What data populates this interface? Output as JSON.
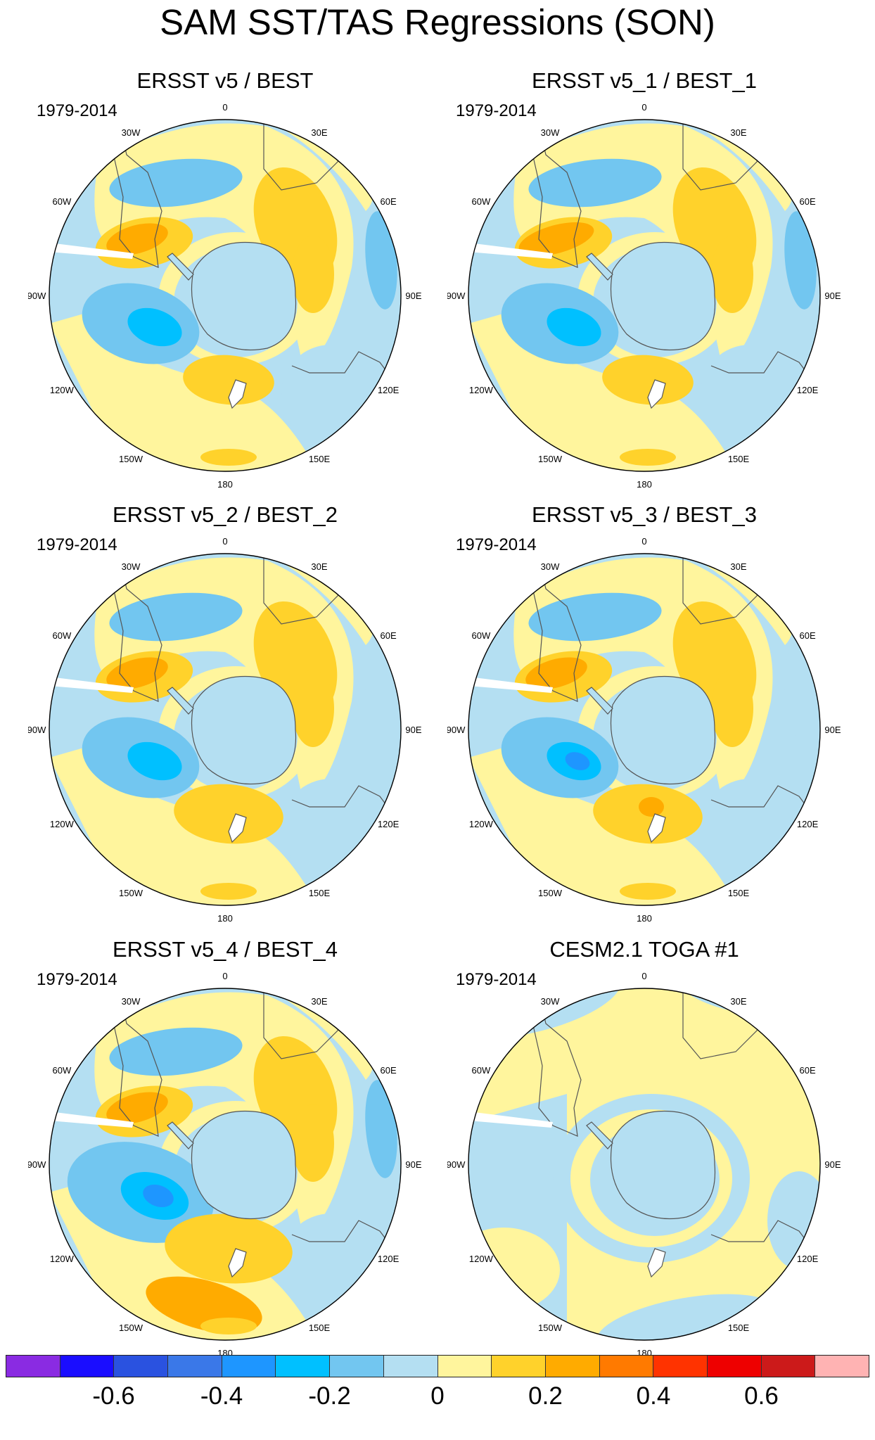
{
  "title": "SAM SST/TAS Regressions (SON)",
  "panels": [
    {
      "title": "ERSST v5 / BEST",
      "period": "1979-2014",
      "variant": 0
    },
    {
      "title": "ERSST v5_1 / BEST_1",
      "period": "1979-2014",
      "variant": 1
    },
    {
      "title": "ERSST v5_2 / BEST_2",
      "period": "1979-2014",
      "variant": 2
    },
    {
      "title": "ERSST v5_3 / BEST_3",
      "period": "1979-2014",
      "variant": 3
    },
    {
      "title": "ERSST v5_4 / BEST_4",
      "period": "1979-2014",
      "variant": 4
    },
    {
      "title": "CESM2.1 TOGA #1",
      "period": "1979-2014",
      "variant": 5
    }
  ],
  "longitude_labels": [
    "0",
    "30E",
    "60E",
    "90E",
    "120E",
    "150E",
    "180",
    "150W",
    "120W",
    "90W",
    "60W",
    "30W"
  ],
  "colorbar": {
    "colors": [
      "#8a2be2",
      "#1a0dff",
      "#2a52e0",
      "#3a78e8",
      "#1e96ff",
      "#00c0ff",
      "#72c6f0",
      "#b4dff2",
      "#fff59d",
      "#ffd22b",
      "#ffab00",
      "#ff7a00",
      "#ff3300",
      "#ee0000",
      "#cc1a1a",
      "#ffb3b3"
    ],
    "labels": [
      "-0.6",
      "-0.4",
      "-0.2",
      "0",
      "0.2",
      "0.4",
      "0.6"
    ],
    "label_values": [
      -0.6,
      -0.4,
      -0.2,
      0,
      0.2,
      0.4,
      0.6
    ],
    "range": [
      -0.8,
      0.8
    ]
  }
}
